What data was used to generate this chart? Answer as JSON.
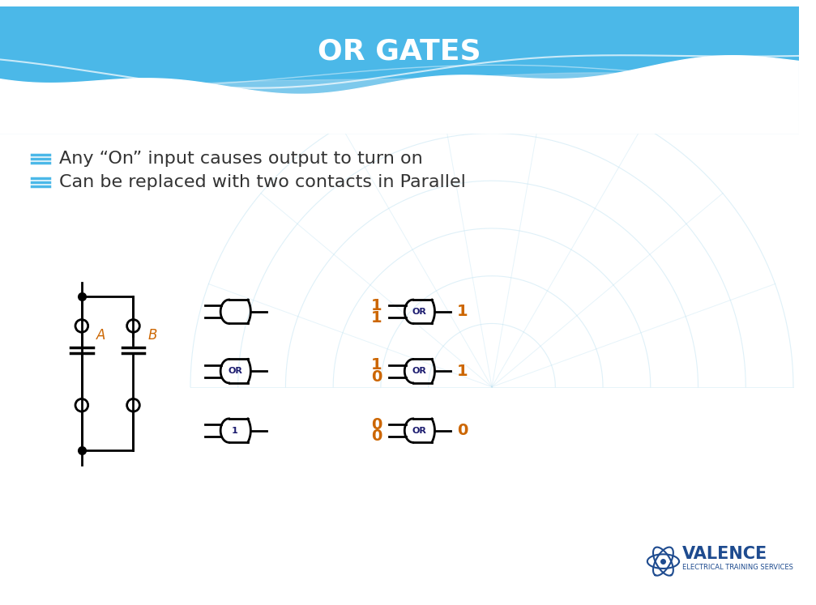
{
  "title": "OR GATES",
  "title_color": "#FFFFFF",
  "bg_color": "#FFFFFF",
  "header_color": "#4BB8E8",
  "bullet1": "Any “On” input causes output to turn on",
  "bullet2": "Can be replaced with two contacts in Parallel",
  "bullet_color": "#333333",
  "bullet_icon_color": "#4BB8E8",
  "gate_color": "#000000",
  "label_color_orange": "#CC6600",
  "label_color_dark": "#1A1A6E",
  "valence_blue": "#1E4B8F",
  "wave_color": "#A8D8F0",
  "globe_color": "#B8DFF0"
}
